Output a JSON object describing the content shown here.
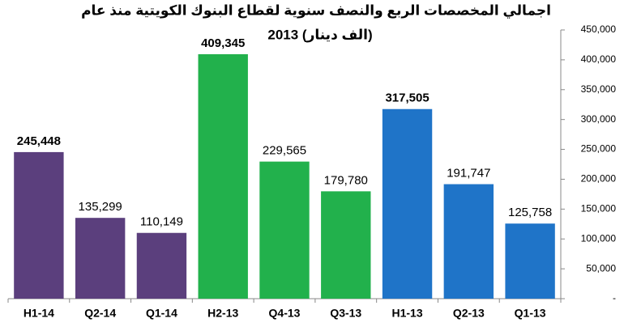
{
  "chart_data": {
    "type": "bar",
    "title": [
      "اجمالي المخصصات الربع والنصف سنوية لقطاع البنوك الكويتية منذ عام",
      "(الف دينار) 2013"
    ],
    "categories": [
      "H1-14",
      "Q2-14",
      "Q1-14",
      "H2-13",
      "Q4-13",
      "Q3-13",
      "H1-13",
      "Q2-13",
      "Q1-13"
    ],
    "values": [
      245448,
      135299,
      110149,
      409345,
      229565,
      179780,
      317505,
      191747,
      125758
    ],
    "value_labels": [
      "245,448",
      "135,299",
      "110,149",
      "409,345",
      "229,565",
      "179,780",
      "317,505",
      "191,747",
      "125,758"
    ],
    "value_label_bold": [
      true,
      false,
      false,
      true,
      false,
      false,
      true,
      false,
      false
    ],
    "colors": [
      "#5b3f7d",
      "#5b3f7d",
      "#5b3f7d",
      "#22b14c",
      "#22b14c",
      "#22b14c",
      "#1f74c8",
      "#1f74c8",
      "#1f74c8"
    ],
    "ylim": [
      0,
      450000
    ],
    "yticks": [
      {
        "value": 0,
        "label": "-"
      },
      {
        "value": 50000,
        "label": "50,000"
      },
      {
        "value": 100000,
        "label": "100,000"
      },
      {
        "value": 150000,
        "label": "150,000"
      },
      {
        "value": 200000,
        "label": "200,000"
      },
      {
        "value": 250000,
        "label": "250,000"
      },
      {
        "value": 300000,
        "label": "300,000"
      },
      {
        "value": 350000,
        "label": "350,000"
      },
      {
        "value": 400000,
        "label": "400,000"
      },
      {
        "value": 450000,
        "label": "450,000"
      }
    ],
    "yaxis_side": "right",
    "grid": false
  }
}
